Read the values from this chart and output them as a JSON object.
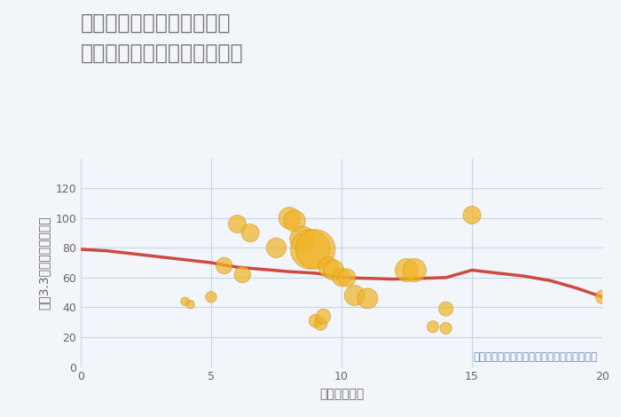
{
  "title_line1": "三重県四日市市羽津山町の",
  "title_line2": "駅距離別中古マンション価格",
  "xlabel": "駅距離（分）",
  "ylabel": "坪（3.3㎡）単価（万円）",
  "annotation": "円の大きさは、取引のあった物件面積を示す",
  "background_color": "#f2f5f9",
  "xlim": [
    0,
    20
  ],
  "ylim": [
    0,
    140
  ],
  "xticks": [
    0,
    5,
    10,
    15,
    20
  ],
  "yticks": [
    0,
    20,
    40,
    60,
    80,
    100,
    120
  ],
  "scatter_x": [
    4.0,
    4.2,
    5.0,
    5.5,
    6.0,
    6.2,
    6.5,
    7.5,
    8.0,
    8.2,
    8.5,
    8.8,
    9.0,
    9.0,
    9.2,
    9.3,
    9.5,
    9.7,
    10.0,
    10.2,
    10.5,
    11.0,
    12.5,
    12.8,
    13.5,
    14.0,
    14.0,
    15.0,
    20.0
  ],
  "scatter_y": [
    44,
    42,
    47,
    68,
    96,
    62,
    90,
    80,
    100,
    98,
    86,
    79,
    79,
    31,
    29,
    34,
    67,
    65,
    60,
    60,
    48,
    46,
    65,
    65,
    27,
    39,
    26,
    102,
    47
  ],
  "scatter_size": [
    15,
    15,
    25,
    55,
    65,
    55,
    65,
    80,
    95,
    95,
    130,
    320,
    320,
    35,
    35,
    45,
    85,
    85,
    65,
    65,
    85,
    85,
    110,
    110,
    28,
    42,
    28,
    65,
    38
  ],
  "scatter_color": "#f0b429",
  "scatter_alpha": 0.72,
  "scatter_edgecolor": "#c8900a",
  "line_x": [
    0,
    1,
    2,
    3,
    4,
    5,
    6,
    7,
    8,
    9,
    10,
    11,
    12,
    13,
    14,
    15,
    16,
    17,
    18,
    19,
    20
  ],
  "line_y": [
    79,
    78,
    76,
    74,
    72,
    70,
    67,
    65.5,
    64,
    63,
    60,
    59.5,
    59,
    59.5,
    60,
    65,
    63,
    61,
    58,
    53,
    47
  ],
  "line_color": "#cd4a3f",
  "line_width": 2.5,
  "title_color": "#777777",
  "title_fontsize": 17,
  "label_fontsize": 10,
  "tick_fontsize": 9,
  "grid_color": "#c5d5e8",
  "annot_color": "#6688bb",
  "annot_fontsize": 8.5
}
